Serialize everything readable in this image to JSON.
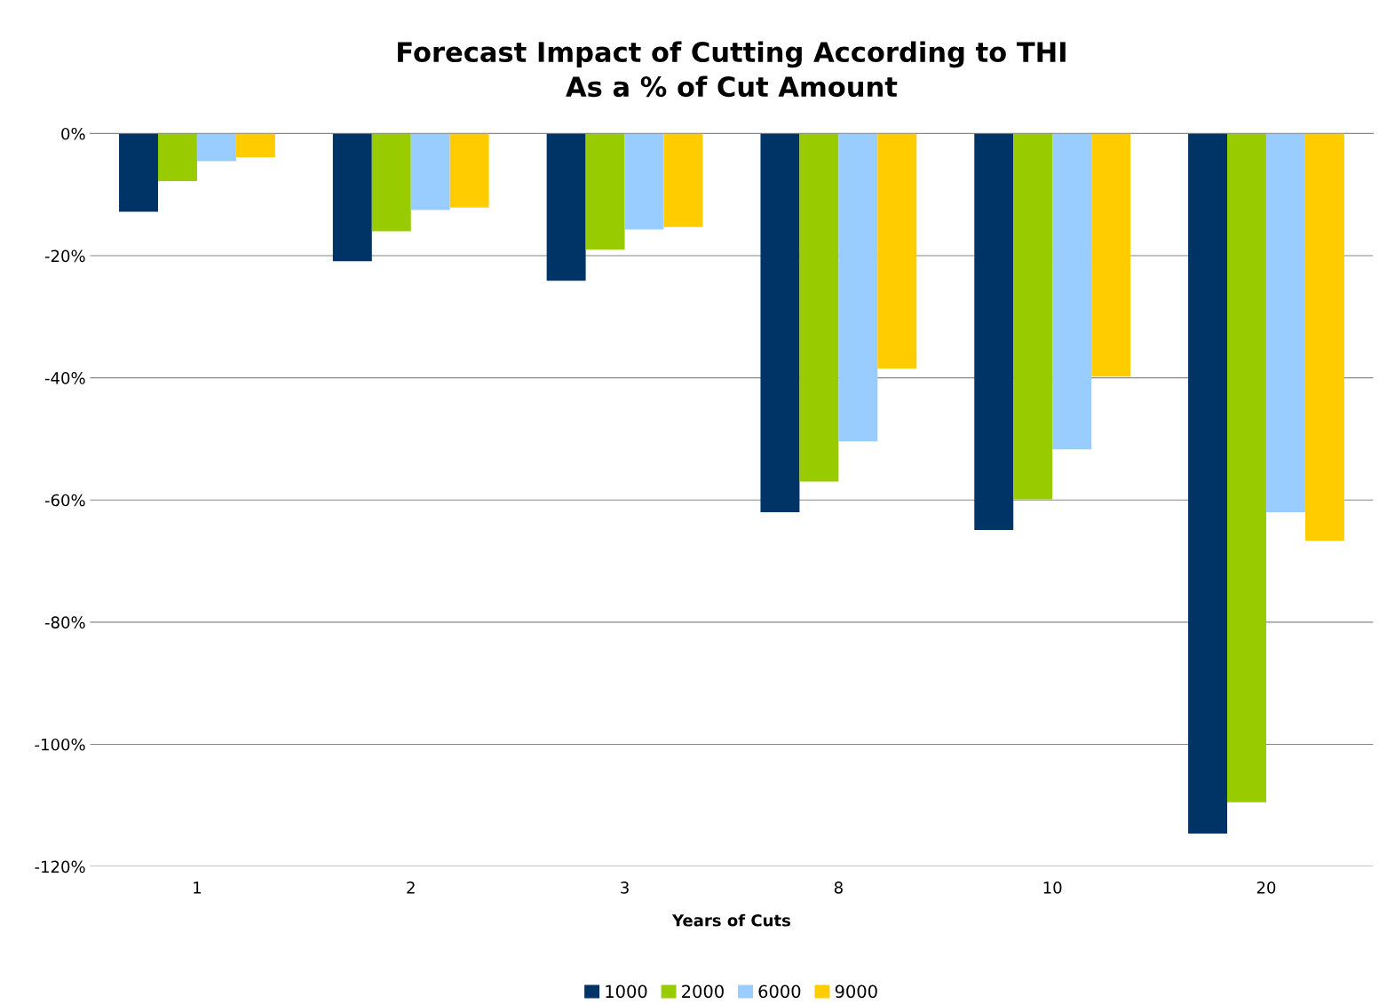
{
  "chart_data": {
    "type": "bar",
    "title": "Forecast Impact of Cutting According to THI\nAs a % of Cut Amount",
    "xlabel": "Years of Cuts",
    "categories": [
      "1",
      "2",
      "3",
      "8",
      "10",
      "20"
    ],
    "series": [
      {
        "name": "1000",
        "color": "#003366",
        "values": [
          -12.8,
          -20.9,
          -24.1,
          -62.0,
          -64.9,
          -114.6
        ]
      },
      {
        "name": "2000",
        "color": "#99cc00",
        "values": [
          -7.8,
          -16.0,
          -19.0,
          -57.0,
          -59.9,
          -109.5
        ]
      },
      {
        "name": "6000",
        "color": "#99ccff",
        "values": [
          -4.5,
          -12.5,
          -15.7,
          -50.4,
          -51.7,
          -62.0
        ]
      },
      {
        "name": "9000",
        "color": "#ffcc00",
        "values": [
          -3.9,
          -12.1,
          -15.3,
          -38.5,
          -39.8,
          -66.7
        ]
      }
    ],
    "ylim": [
      -120,
      0
    ],
    "yticks": [
      {
        "value": -120,
        "label": "-120%"
      },
      {
        "value": -100,
        "label": "-100%"
      },
      {
        "value": -80,
        "label": "-80%"
      },
      {
        "value": -60,
        "label": "-60%"
      },
      {
        "value": -40,
        "label": "-40%"
      },
      {
        "value": -20,
        "label": "-20%"
      },
      {
        "value": 0,
        "label": "0%"
      }
    ],
    "grid": "y",
    "legend": "bottom"
  }
}
